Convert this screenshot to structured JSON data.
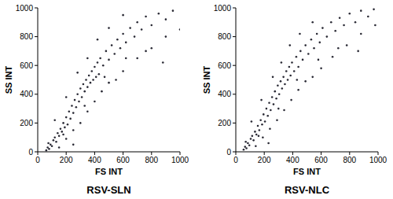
{
  "chart_data": [
    {
      "type": "scatter",
      "title": "RSV-SLN",
      "x_label": "FS INT",
      "y_label": "SS INT",
      "color": "#2a2a35",
      "marker": "dot",
      "xlim": [
        0,
        1000
      ],
      "ylim": [
        0,
        1000
      ],
      "xticks": [
        0,
        200,
        400,
        600,
        800,
        1000
      ],
      "yticks": [
        0,
        200,
        400,
        600,
        800,
        1000
      ],
      "x": [
        60,
        70,
        80,
        90,
        100,
        110,
        75,
        120,
        130,
        140,
        150,
        160,
        170,
        180,
        190,
        200,
        210,
        220,
        230,
        240,
        250,
        260,
        270,
        280,
        290,
        300,
        310,
        320,
        330,
        340,
        350,
        360,
        370,
        380,
        390,
        400,
        410,
        420,
        430,
        440,
        460,
        480,
        500,
        520,
        540,
        560,
        580,
        600,
        620,
        650,
        680,
        700,
        730,
        760,
        800,
        850,
        900,
        950,
        150,
        200,
        250,
        300,
        350,
        400,
        450,
        500,
        550,
        600,
        700,
        800,
        900,
        1000,
        120,
        200,
        280,
        350,
        420,
        500,
        600,
        250,
        180,
        330,
        470,
        620,
        760,
        880
      ],
      "values": [
        10,
        30,
        20,
        50,
        40,
        80,
        60,
        100,
        70,
        130,
        110,
        160,
        140,
        200,
        170,
        240,
        190,
        280,
        230,
        320,
        270,
        360,
        310,
        400,
        350,
        440,
        380,
        470,
        420,
        500,
        450,
        530,
        480,
        560,
        500,
        590,
        520,
        620,
        540,
        650,
        600,
        700,
        640,
        740,
        680,
        780,
        720,
        820,
        760,
        860,
        800,
        900,
        850,
        940,
        880,
        960,
        920,
        980,
        30,
        90,
        150,
        200,
        280,
        350,
        420,
        480,
        500,
        560,
        650,
        720,
        800,
        850,
        220,
        380,
        550,
        650,
        780,
        860,
        950,
        50,
        120,
        320,
        520,
        650,
        700,
        620
      ]
    },
    {
      "type": "scatter",
      "title": "RSV-NLC",
      "x_label": "FS INT",
      "y_label": "SS INT",
      "color": "#2a2a35",
      "marker": "dot",
      "xlim": [
        0,
        1000
      ],
      "ylim": [
        0,
        1000
      ],
      "xticks": [
        0,
        200,
        400,
        600,
        800,
        1000
      ],
      "yticks": [
        0,
        200,
        400,
        600,
        800,
        1000
      ],
      "x": [
        55,
        65,
        75,
        85,
        95,
        105,
        70,
        115,
        125,
        135,
        145,
        155,
        165,
        175,
        185,
        195,
        205,
        215,
        225,
        235,
        245,
        255,
        265,
        275,
        285,
        295,
        305,
        315,
        325,
        335,
        345,
        355,
        365,
        375,
        385,
        395,
        410,
        425,
        440,
        455,
        470,
        490,
        510,
        530,
        550,
        570,
        590,
        610,
        640,
        670,
        700,
        730,
        760,
        800,
        840,
        880,
        930,
        970,
        140,
        190,
        240,
        290,
        340,
        390,
        440,
        490,
        540,
        600,
        680,
        780,
        880,
        980,
        110,
        180,
        260,
        320,
        380,
        450,
        540,
        230,
        160,
        300,
        430,
        580,
        720,
        860
      ],
      "values": [
        15,
        35,
        25,
        60,
        45,
        90,
        70,
        110,
        80,
        140,
        120,
        180,
        150,
        220,
        190,
        260,
        210,
        300,
        250,
        340,
        290,
        380,
        330,
        420,
        370,
        460,
        400,
        490,
        440,
        520,
        470,
        560,
        500,
        590,
        530,
        620,
        560,
        660,
        590,
        700,
        640,
        740,
        680,
        780,
        720,
        820,
        760,
        860,
        800,
        900,
        840,
        930,
        880,
        960,
        900,
        980,
        940,
        990,
        40,
        100,
        160,
        220,
        290,
        360,
        430,
        490,
        520,
        580,
        660,
        740,
        820,
        880,
        210,
        360,
        520,
        620,
        740,
        820,
        900,
        60,
        110,
        300,
        500,
        640,
        720,
        700
      ]
    }
  ]
}
